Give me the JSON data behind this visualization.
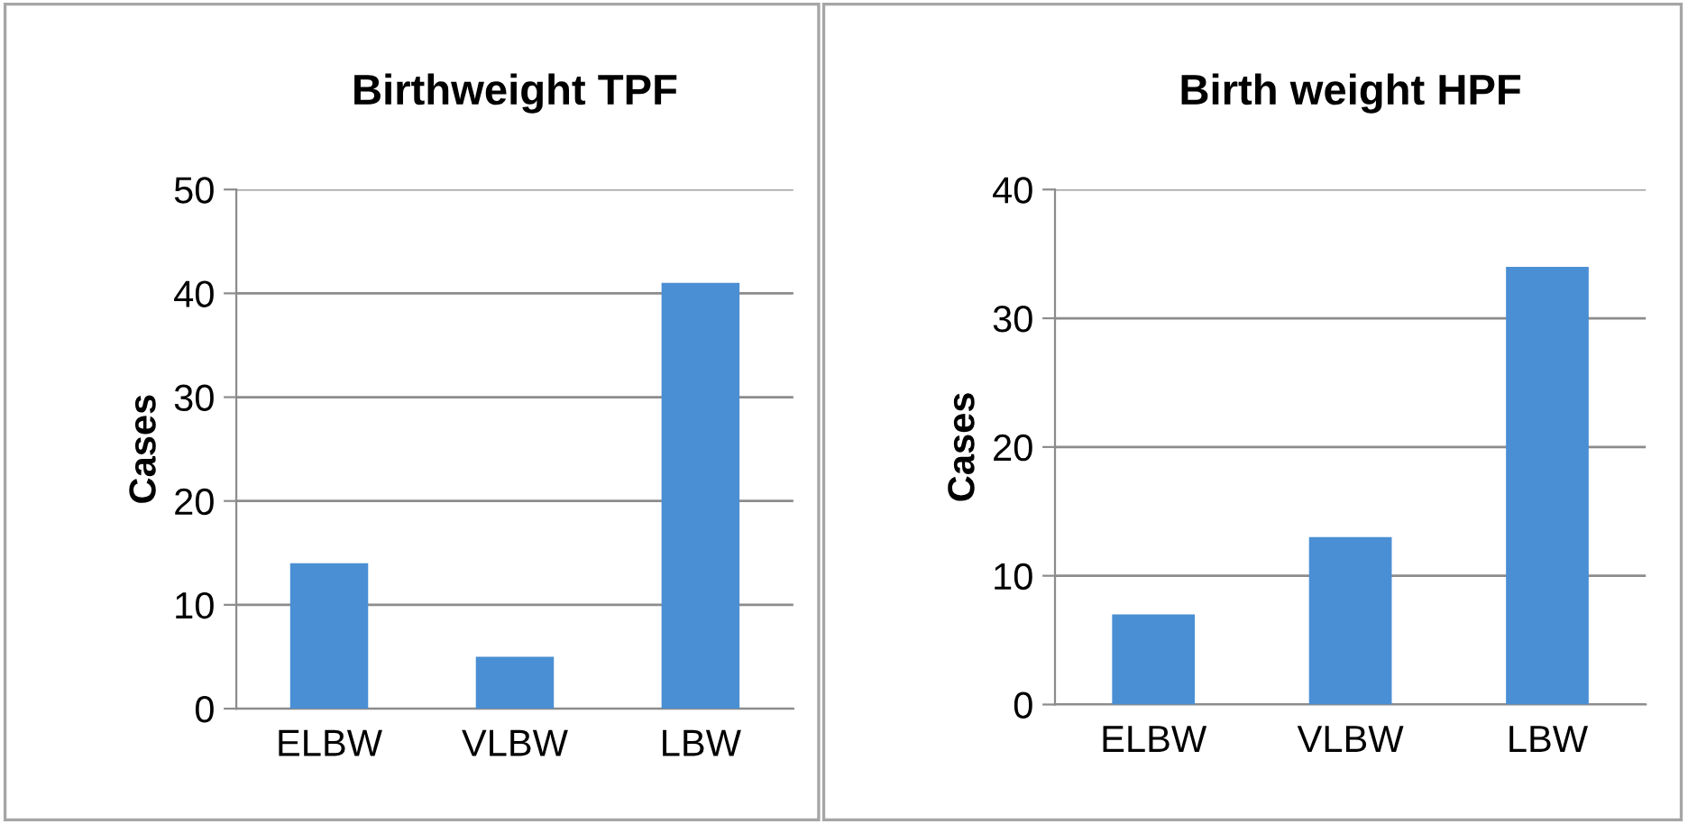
{
  "chart_data": [
    {
      "type": "bar",
      "title": "Birthweight TPF",
      "ylabel": "Cases",
      "categories": [
        "ELBW",
        "VLBW",
        "LBW"
      ],
      "values": [
        14,
        5,
        41
      ],
      "color": "#4a8fd4",
      "ylim": [
        0,
        50
      ],
      "yticks": [
        0,
        10,
        20,
        30,
        40,
        50
      ],
      "grid": "y"
    },
    {
      "type": "bar",
      "title": "Birth weight HPF",
      "ylabel": "Cases",
      "categories": [
        "ELBW",
        "VLBW",
        "LBW"
      ],
      "values": [
        7,
        13,
        34
      ],
      "color": "#4a8fd4",
      "ylim": [
        0,
        40
      ],
      "yticks": [
        0,
        10,
        20,
        30,
        40
      ],
      "grid": "y"
    }
  ]
}
